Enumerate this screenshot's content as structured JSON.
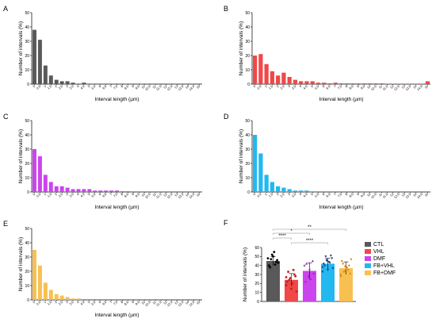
{
  "chart_data": [
    {
      "panel": "A",
      "type": "bar",
      "color": "#595959",
      "xlabel": "Interval length (µm)",
      "ylabel": "Number of intervals (%)",
      "ylim": [
        0,
        50
      ],
      "yticks": [
        "0",
        "10",
        "20",
        "30",
        "40",
        "50"
      ],
      "categories": [
        "0",
        "0.5",
        "1",
        "1.5",
        "2",
        "2.5",
        "3",
        "3.5",
        "4",
        "4.5",
        "5",
        "5.5",
        "6",
        "6.5",
        "7",
        "7.5",
        "8",
        "8.5",
        "9",
        "9.5",
        "10",
        "10.5",
        "11",
        "11.5",
        "12",
        "12.5",
        "13",
        "13.5",
        "14",
        "14.5",
        "15"
      ],
      "values": [
        38,
        31,
        13,
        6,
        3,
        2,
        2,
        1,
        0,
        1,
        0,
        0,
        0,
        0,
        0,
        0,
        0,
        0,
        0,
        0,
        0,
        0,
        0,
        0,
        0,
        0,
        0,
        0,
        0,
        0,
        0
      ]
    },
    {
      "panel": "B",
      "type": "bar",
      "color": "#f04848",
      "xlabel": "Interval length (µm)",
      "ylabel": "Number of intervals (%)",
      "ylim": [
        0,
        50
      ],
      "yticks": [
        "0",
        "10",
        "20",
        "30",
        "40",
        "50"
      ],
      "categories": [
        "0",
        "0.5",
        "1",
        "1.5",
        "2",
        "2.5",
        "3",
        "3.5",
        "4",
        "4.5",
        "5",
        "5.5",
        "6",
        "6.5",
        "7",
        "7.5",
        "8",
        "8.5",
        "9",
        "9.5",
        "10",
        "10.5",
        "11",
        "11.5",
        "12",
        "12.5",
        "13",
        "13.5",
        "14",
        "14.5",
        "15"
      ],
      "values": [
        20,
        21,
        14,
        9,
        6,
        8,
        5,
        3,
        2,
        2,
        2,
        1,
        1,
        0.5,
        1,
        0.5,
        0.5,
        0.5,
        0.5,
        0.5,
        0.5,
        0.5,
        0.5,
        0.3,
        0.3,
        0.3,
        0.3,
        0.3,
        0.3,
        0.3,
        2
      ]
    },
    {
      "panel": "C",
      "type": "bar",
      "color": "#cc44ee",
      "xlabel": "Interval length (µm)",
      "ylabel": "Number of intervals (%)",
      "ylim": [
        0,
        50
      ],
      "yticks": [
        "0",
        "10",
        "20",
        "30",
        "40",
        "50"
      ],
      "categories": [
        "0",
        "0.5",
        "1",
        "1.5",
        "2",
        "2.5",
        "3",
        "3.5",
        "4",
        "4.5",
        "5",
        "5.5",
        "6",
        "6.5",
        "7",
        "7.5",
        "8",
        "8.5",
        "9",
        "9.5",
        "10",
        "10.5",
        "11",
        "11.5",
        "12",
        "12.5",
        "13",
        "13.5",
        "14",
        "14.5",
        "15"
      ],
      "values": [
        30,
        25,
        12,
        7,
        4,
        4,
        3,
        2,
        2,
        2,
        2,
        1,
        1,
        1,
        1,
        1,
        0.5,
        0.5,
        0,
        0,
        0,
        0,
        0,
        0,
        0,
        0,
        0,
        0,
        0,
        0,
        0
      ]
    },
    {
      "panel": "D",
      "type": "bar",
      "color": "#22b8f0",
      "xlabel": "Interval length (µm)",
      "ylabel": "Number of intervals (%)",
      "ylim": [
        0,
        50
      ],
      "yticks": [
        "0",
        "10",
        "20",
        "30",
        "40",
        "50"
      ],
      "categories": [
        "0",
        "0.5",
        "1",
        "1.5",
        "2",
        "2.5",
        "3",
        "3.5",
        "4",
        "4.5",
        "5",
        "5.5",
        "6",
        "6.5",
        "7",
        "7.5",
        "8",
        "8.5",
        "9",
        "9.5",
        "10",
        "10.5",
        "11",
        "11.5",
        "12",
        "12.5",
        "13",
        "13.5",
        "14",
        "14.5",
        "15"
      ],
      "values": [
        40,
        27,
        12,
        7,
        4,
        3,
        2,
        1,
        1,
        1,
        0,
        0,
        0,
        0,
        0,
        0,
        0,
        0,
        0,
        0,
        0,
        0,
        0,
        0,
        0,
        0,
        0,
        0,
        0,
        0,
        0
      ]
    },
    {
      "panel": "E",
      "type": "bar",
      "color": "#f8c050",
      "xlabel": "Interval length (µm)",
      "ylabel": "Number of intervals (%)",
      "ylim": [
        0,
        50
      ],
      "yticks": [
        "0",
        "10",
        "20",
        "30",
        "40",
        "50"
      ],
      "categories": [
        "0",
        "0.5",
        "1",
        "1.5",
        "2",
        "2.5",
        "3",
        "3.5",
        "4",
        "4.5",
        "5",
        "5.5",
        "6",
        "6.5",
        "7",
        "7.5",
        "8",
        "8.5",
        "9",
        "9.5",
        "10",
        "10.5",
        "11",
        "11.5",
        "12",
        "12.5",
        "13",
        "13.5",
        "14",
        "14.5",
        "15"
      ],
      "values": [
        35,
        24,
        12,
        7,
        4,
        3,
        2,
        1,
        1,
        0,
        0,
        0,
        0,
        0,
        0,
        0,
        0,
        0,
        0,
        0,
        0,
        0,
        0,
        0,
        0,
        0,
        0,
        0,
        0,
        0,
        0
      ]
    },
    {
      "panel": "F",
      "type": "bar",
      "ylabel": "Number of intervals (%)",
      "ylim": [
        0,
        60
      ],
      "yticks": [
        "0",
        "10",
        "20",
        "30",
        "40",
        "50",
        "60"
      ],
      "categories": [
        "CTL",
        "VHL",
        "DMF",
        "FB+VHL",
        "FB+DMF"
      ],
      "colors": [
        "#595959",
        "#f04848",
        "#cc44ee",
        "#22b8f0",
        "#f8c050"
      ],
      "series": [
        {
          "name": "mean",
          "values": [
            45,
            24,
            34,
            42,
            37
          ],
          "sd": [
            5,
            7,
            9,
            6,
            7
          ]
        }
      ],
      "points": [
        [
          48,
          52,
          44,
          40,
          50,
          46,
          38,
          55,
          43,
          47,
          41
        ],
        [
          18,
          26,
          30,
          22,
          14,
          28,
          33,
          20,
          11,
          24,
          35,
          27
        ],
        [
          40,
          28,
          45,
          22,
          36,
          31,
          42,
          25
        ],
        [
          38,
          46,
          51,
          42,
          35,
          48,
          40,
          44,
          37,
          50,
          43,
          33,
          45
        ],
        [
          28,
          34,
          40,
          45,
          36,
          31,
          42,
          38,
          47,
          33,
          35,
          30,
          39
        ]
      ],
      "significance": [
        {
          "from": "CTL",
          "to": "VHL",
          "label": "****"
        },
        {
          "from": "CTL",
          "to": "DMF",
          "label": "*"
        },
        {
          "from": "CTL",
          "to": "FB+DMF",
          "label": "**"
        },
        {
          "from": "VHL",
          "to": "FB+VHL",
          "label": "****"
        }
      ],
      "legend": [
        {
          "label": "CTL",
          "color": "#595959"
        },
        {
          "label": "VHL",
          "color": "#f04848"
        },
        {
          "label": "DMF",
          "color": "#cc44ee"
        },
        {
          "label": "FB+VHL",
          "color": "#22b8f0"
        },
        {
          "label": "FB+DMF",
          "color": "#f8c050"
        }
      ]
    }
  ]
}
